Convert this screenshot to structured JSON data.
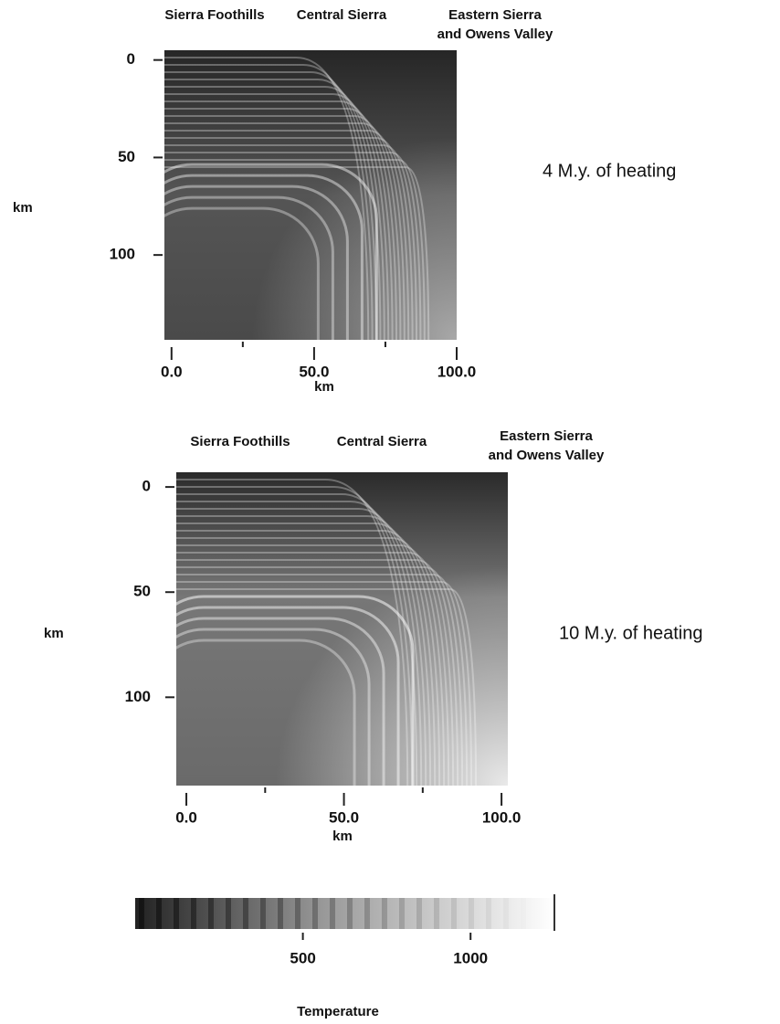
{
  "chart_data": [
    {
      "type": "heatmap",
      "annotation": "4 M.y. of heating",
      "y_label": "km",
      "x_label": "km",
      "regions": [
        [
          "Sierra Foothills"
        ],
        [
          "Central Sierra"
        ],
        [
          "Eastern Sierra",
          "and Owens Valley"
        ]
      ],
      "xlim": [
        -2.5,
        100
      ],
      "ylim": [
        -5,
        143.5
      ],
      "xticks": [
        {
          "value": 0,
          "label": "0.0"
        },
        {
          "value": 50,
          "label": "50.0"
        },
        {
          "value": 100,
          "label": "100.0"
        }
      ],
      "xminorticks": [
        25,
        75
      ],
      "yticks": [
        0,
        50,
        100
      ]
    },
    {
      "type": "heatmap",
      "annotation": "10 M.y. of heating",
      "y_label": "km",
      "x_label": "km",
      "regions": [
        [
          "Sierra Foothills"
        ],
        [
          "Central Sierra"
        ],
        [
          "Eastern Sierra",
          "and Owens Valley"
        ]
      ],
      "xlim": [
        -3.2,
        102
      ],
      "ylim": [
        -7,
        142
      ],
      "xticks": [
        {
          "value": 0,
          "label": "0.0"
        },
        {
          "value": 50,
          "label": "50.0"
        },
        {
          "value": 100,
          "label": "100.0"
        }
      ],
      "xminorticks": [
        25,
        75
      ],
      "yticks": [
        0,
        50,
        100
      ]
    },
    {
      "type": "colorbar",
      "label": "Temperature",
      "xlim": [
        0,
        1250
      ],
      "xticks": [
        500,
        1000
      ]
    }
  ]
}
